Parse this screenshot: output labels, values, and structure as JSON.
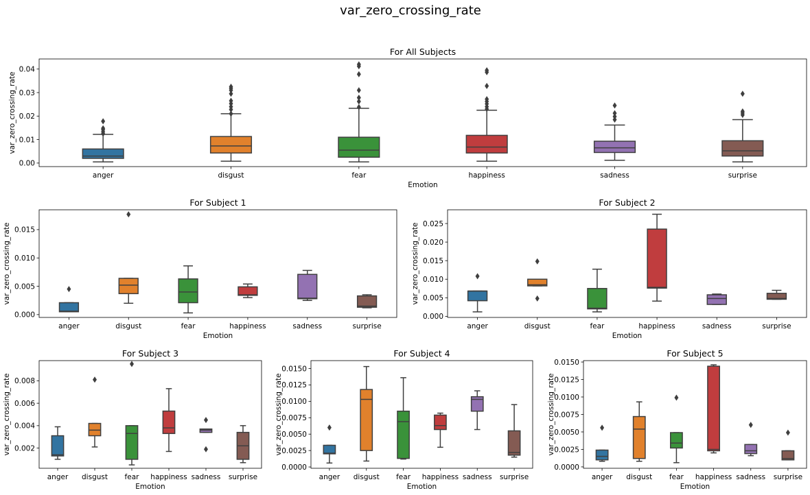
{
  "figure": {
    "suptitle": "var_zero_crossing_rate",
    "colors": {
      "anger": "#3274a1",
      "disgust": "#e1812c",
      "fear": "#3a923a",
      "happiness": "#c03d3e",
      "sadness": "#9372b2",
      "surprise": "#845b53"
    },
    "box_edge_color": "#3f3f3f"
  },
  "chart_data": [
    {
      "type": "box",
      "title": "For All Subjects",
      "xlabel": "Emotion",
      "ylabel": "var_zero_crossing_rate",
      "categories": [
        "anger",
        "disgust",
        "fear",
        "happiness",
        "sadness",
        "surprise"
      ],
      "ylim": [
        -0.0015,
        0.0443
      ],
      "yticks": [
        0.0,
        0.01,
        0.02,
        0.03,
        0.04
      ],
      "ytick_labels": [
        "0.00",
        "0.01",
        "0.02",
        "0.03",
        "0.04"
      ],
      "boxes": [
        {
          "whislo": 0.0005,
          "q1": 0.002,
          "med": 0.003,
          "q3": 0.006,
          "whishi": 0.0122,
          "fliers": [
            0.0125,
            0.0133,
            0.0142,
            0.0148,
            0.0178
          ]
        },
        {
          "whislo": 0.0008,
          "q1": 0.0043,
          "med": 0.0073,
          "q3": 0.0113,
          "whishi": 0.021,
          "fliers": [
            0.021,
            0.0228,
            0.024,
            0.0253,
            0.0265,
            0.0295,
            0.031,
            0.0318,
            0.0325
          ]
        },
        {
          "whislo": 0.0005,
          "q1": 0.0025,
          "med": 0.0055,
          "q3": 0.011,
          "whishi": 0.0233,
          "fliers": [
            0.0238,
            0.0262,
            0.0278,
            0.031,
            0.0378,
            0.0412,
            0.042
          ]
        },
        {
          "whislo": 0.0008,
          "q1": 0.0043,
          "med": 0.0068,
          "q3": 0.0118,
          "whishi": 0.0225,
          "fliers": [
            0.023,
            0.024,
            0.0252,
            0.0262,
            0.0272,
            0.0328,
            0.0387,
            0.0395
          ]
        },
        {
          "whislo": 0.0012,
          "q1": 0.0045,
          "med": 0.0065,
          "q3": 0.0093,
          "whishi": 0.0162,
          "fliers": [
            0.0185,
            0.0198,
            0.0212,
            0.0245
          ]
        },
        {
          "whislo": 0.0005,
          "q1": 0.003,
          "med": 0.0052,
          "q3": 0.0095,
          "whishi": 0.0185,
          "fliers": [
            0.0205,
            0.0213,
            0.022,
            0.0295
          ]
        }
      ]
    },
    {
      "type": "box",
      "title": "For Subject 1",
      "xlabel": "Emotion",
      "ylabel": "var_zero_crossing_rate",
      "categories": [
        "anger",
        "disgust",
        "fear",
        "happiness",
        "sadness",
        "surprise"
      ],
      "ylim": [
        -0.0005,
        0.0185
      ],
      "yticks": [
        0.0,
        0.005,
        0.01,
        0.015
      ],
      "ytick_labels": [
        "0.000",
        "0.005",
        "0.010",
        "0.015"
      ],
      "boxes": [
        {
          "whislo": 0.0005,
          "q1": 0.0005,
          "med": 0.0006,
          "q3": 0.0021,
          "whishi": 0.0021,
          "fliers": [
            0.0045
          ]
        },
        {
          "whislo": 0.002,
          "q1": 0.0037,
          "med": 0.0052,
          "q3": 0.0064,
          "whishi": 0.0064,
          "fliers": [
            0.0177
          ]
        },
        {
          "whislo": 0.0003,
          "q1": 0.0021,
          "med": 0.004,
          "q3": 0.0063,
          "whishi": 0.0086,
          "fliers": []
        },
        {
          "whislo": 0.003,
          "q1": 0.0034,
          "med": 0.0035,
          "q3": 0.0049,
          "whishi": 0.0054,
          "fliers": []
        },
        {
          "whislo": 0.0025,
          "q1": 0.0028,
          "med": 0.0029,
          "q3": 0.0071,
          "whishi": 0.0078,
          "fliers": []
        },
        {
          "whislo": 0.0012,
          "q1": 0.0013,
          "med": 0.0015,
          "q3": 0.0033,
          "whishi": 0.0035,
          "fliers": []
        }
      ]
    },
    {
      "type": "box",
      "title": "For Subject 2",
      "xlabel": "Emotion",
      "ylabel": "var_zero_crossing_rate",
      "categories": [
        "anger",
        "disgust",
        "fear",
        "happiness",
        "sadness",
        "surprise"
      ],
      "ylim": [
        -0.0003,
        0.0287
      ],
      "yticks": [
        0.0,
        0.005,
        0.01,
        0.015,
        0.02,
        0.025
      ],
      "ytick_labels": [
        "0.000",
        "0.005",
        "0.010",
        "0.015",
        "0.020",
        "0.025"
      ],
      "boxes": [
        {
          "whislo": 0.0012,
          "q1": 0.0042,
          "med": 0.0068,
          "q3": 0.0068,
          "whishi": 0.0068,
          "fliers": [
            0.0108
          ]
        },
        {
          "whislo": 0.0082,
          "q1": 0.0082,
          "med": 0.0085,
          "q3": 0.01,
          "whishi": 0.01,
          "fliers": [
            0.0148,
            0.0048
          ]
        },
        {
          "whislo": 0.0012,
          "q1": 0.002,
          "med": 0.0022,
          "q3": 0.0075,
          "whishi": 0.0127,
          "fliers": []
        },
        {
          "whislo": 0.0041,
          "q1": 0.0076,
          "med": 0.0078,
          "q3": 0.0235,
          "whishi": 0.0275,
          "fliers": []
        },
        {
          "whislo": 0.0032,
          "q1": 0.0032,
          "med": 0.0048,
          "q3": 0.0058,
          "whishi": 0.006,
          "fliers": []
        },
        {
          "whislo": 0.0046,
          "q1": 0.0046,
          "med": 0.0048,
          "q3": 0.0062,
          "whishi": 0.007,
          "fliers": []
        }
      ]
    },
    {
      "type": "box",
      "title": "For Subject 3",
      "xlabel": "Emotion",
      "ylabel": "var_zero_crossing_rate",
      "categories": [
        "anger",
        "disgust",
        "fear",
        "happiness",
        "sadness",
        "surprise"
      ],
      "ylim": [
        0.0002,
        0.0098
      ],
      "yticks": [
        0.002,
        0.004,
        0.006,
        0.008
      ],
      "ytick_labels": [
        "0.002",
        "0.004",
        "0.006",
        "0.008"
      ],
      "boxes": [
        {
          "whislo": 0.001,
          "q1": 0.0013,
          "med": 0.0014,
          "q3": 0.0031,
          "whishi": 0.0039,
          "fliers": []
        },
        {
          "whislo": 0.0021,
          "q1": 0.0031,
          "med": 0.0036,
          "q3": 0.0042,
          "whishi": 0.0042,
          "fliers": [
            0.0081
          ]
        },
        {
          "whislo": 0.0005,
          "q1": 0.001,
          "med": 0.0033,
          "q3": 0.004,
          "whishi": 0.004,
          "fliers": [
            0.0095
          ]
        },
        {
          "whislo": 0.0017,
          "q1": 0.0033,
          "med": 0.0038,
          "q3": 0.0053,
          "whishi": 0.0073,
          "fliers": []
        },
        {
          "whislo": 0.0034,
          "q1": 0.0034,
          "med": 0.0036,
          "q3": 0.0037,
          "whishi": 0.0037,
          "fliers": [
            0.0045,
            0.0019
          ]
        },
        {
          "whislo": 0.0007,
          "q1": 0.001,
          "med": 0.0022,
          "q3": 0.0034,
          "whishi": 0.004,
          "fliers": []
        }
      ]
    },
    {
      "type": "box",
      "title": "For Subject 4",
      "xlabel": "Emotion",
      "ylabel": "var_zero_crossing_rate",
      "categories": [
        "anger",
        "disgust",
        "fear",
        "happiness",
        "sadness",
        "surprise"
      ],
      "ylim": [
        -0.0002,
        0.0162
      ],
      "yticks": [
        0.0,
        0.0025,
        0.005,
        0.0075,
        0.01,
        0.0125,
        0.015
      ],
      "ytick_labels": [
        "0.0000",
        "0.0025",
        "0.0050",
        "0.0075",
        "0.0100",
        "0.0125",
        "0.0150"
      ],
      "boxes": [
        {
          "whislo": 0.0006,
          "q1": 0.002,
          "med": 0.0021,
          "q3": 0.0033,
          "whishi": 0.0033,
          "fliers": [
            0.006
          ]
        },
        {
          "whislo": 0.0009,
          "q1": 0.0025,
          "med": 0.0103,
          "q3": 0.0118,
          "whishi": 0.0153,
          "fliers": []
        },
        {
          "whislo": 0.0012,
          "q1": 0.0013,
          "med": 0.0069,
          "q3": 0.0085,
          "whishi": 0.0136,
          "fliers": []
        },
        {
          "whislo": 0.003,
          "q1": 0.0057,
          "med": 0.0063,
          "q3": 0.0079,
          "whishi": 0.0082,
          "fliers": []
        },
        {
          "whislo": 0.0057,
          "q1": 0.0085,
          "med": 0.0103,
          "q3": 0.0107,
          "whishi": 0.0116,
          "fliers": []
        },
        {
          "whislo": 0.0015,
          "q1": 0.0018,
          "med": 0.0022,
          "q3": 0.0055,
          "whishi": 0.0095,
          "fliers": []
        }
      ]
    },
    {
      "type": "box",
      "title": "For Subject 5",
      "xlabel": "Emotion",
      "ylabel": "var_zero_crossing_rate",
      "categories": [
        "anger",
        "disgust",
        "fear",
        "happiness",
        "sadness",
        "surprise"
      ],
      "ylim": [
        -0.0002,
        0.0152
      ],
      "yticks": [
        0.0,
        0.0025,
        0.005,
        0.0075,
        0.01,
        0.0125,
        0.015
      ],
      "ytick_labels": [
        "0.0000",
        "0.0025",
        "0.0050",
        "0.0075",
        "0.0100",
        "0.0125",
        "0.0150"
      ],
      "boxes": [
        {
          "whislo": 0.0008,
          "q1": 0.001,
          "med": 0.0015,
          "q3": 0.0024,
          "whishi": 0.0024,
          "fliers": [
            0.0056
          ]
        },
        {
          "whislo": 0.0008,
          "q1": 0.0012,
          "med": 0.0054,
          "q3": 0.0072,
          "whishi": 0.0093,
          "fliers": []
        },
        {
          "whislo": 0.0006,
          "q1": 0.0027,
          "med": 0.0034,
          "q3": 0.0049,
          "whishi": 0.0049,
          "fliers": [
            0.0099
          ]
        },
        {
          "whislo": 0.002,
          "q1": 0.0023,
          "med": 0.0025,
          "q3": 0.0144,
          "whishi": 0.0146,
          "fliers": []
        },
        {
          "whislo": 0.0016,
          "q1": 0.0019,
          "med": 0.0023,
          "q3": 0.0032,
          "whishi": 0.0032,
          "fliers": [
            0.006
          ]
        },
        {
          "whislo": 0.001,
          "q1": 0.001,
          "med": 0.0012,
          "q3": 0.0023,
          "whishi": 0.0023,
          "fliers": [
            0.0049
          ]
        }
      ]
    }
  ]
}
